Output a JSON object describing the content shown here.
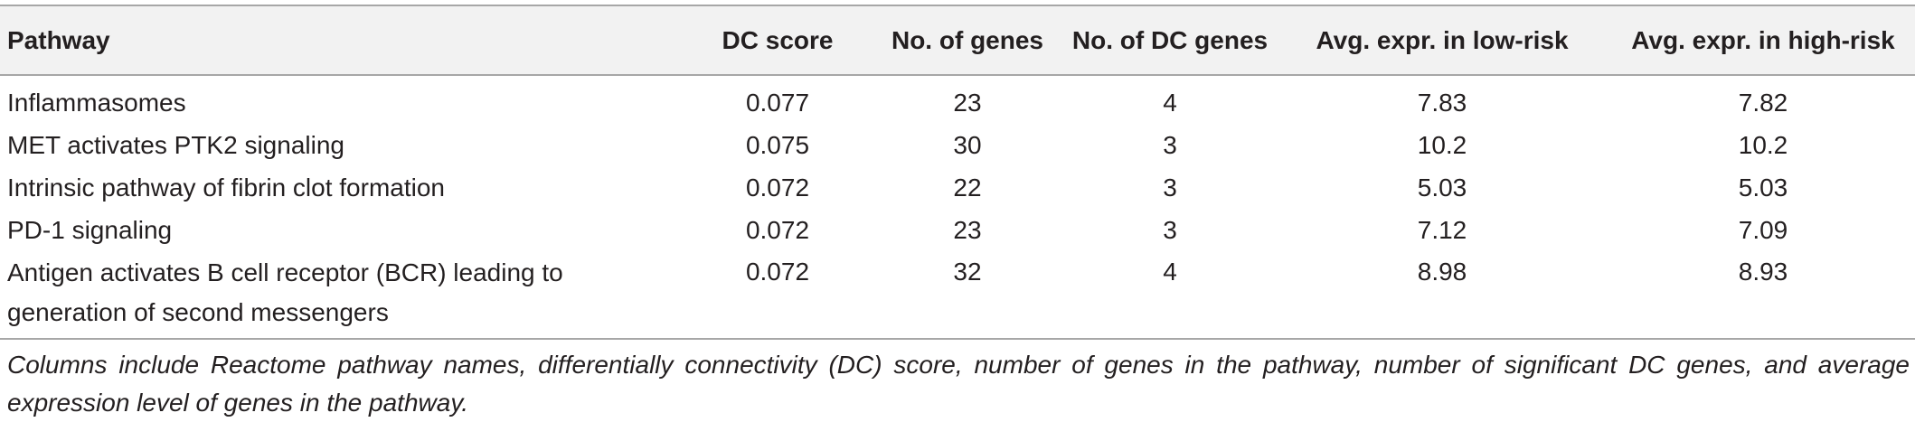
{
  "table": {
    "headers": [
      "Pathway",
      "DC score",
      "No. of genes",
      "No. of DC genes",
      "Avg. expr. in low-risk",
      "Avg. expr. in high-risk"
    ],
    "rows": [
      [
        "Inflammasomes",
        "0.077",
        "23",
        "4",
        "7.83",
        "7.82"
      ],
      [
        "MET activates PTK2 signaling",
        "0.075",
        "30",
        "3",
        "10.2",
        "10.2"
      ],
      [
        "Intrinsic pathway of fibrin clot formation",
        "0.072",
        "22",
        "3",
        "5.03",
        "5.03"
      ],
      [
        "PD-1 signaling",
        "0.072",
        "23",
        "3",
        "7.12",
        "7.09"
      ],
      [
        "Antigen activates B cell receptor (BCR) leading to generation of second messengers",
        "0.072",
        "32",
        "4",
        "8.98",
        "8.93"
      ]
    ]
  },
  "footnote": "Columns include Reactome pathway names, differentially connectivity (DC) score, number of genes in the pathway, number of significant DC genes, and average expression level of genes in the pathway."
}
